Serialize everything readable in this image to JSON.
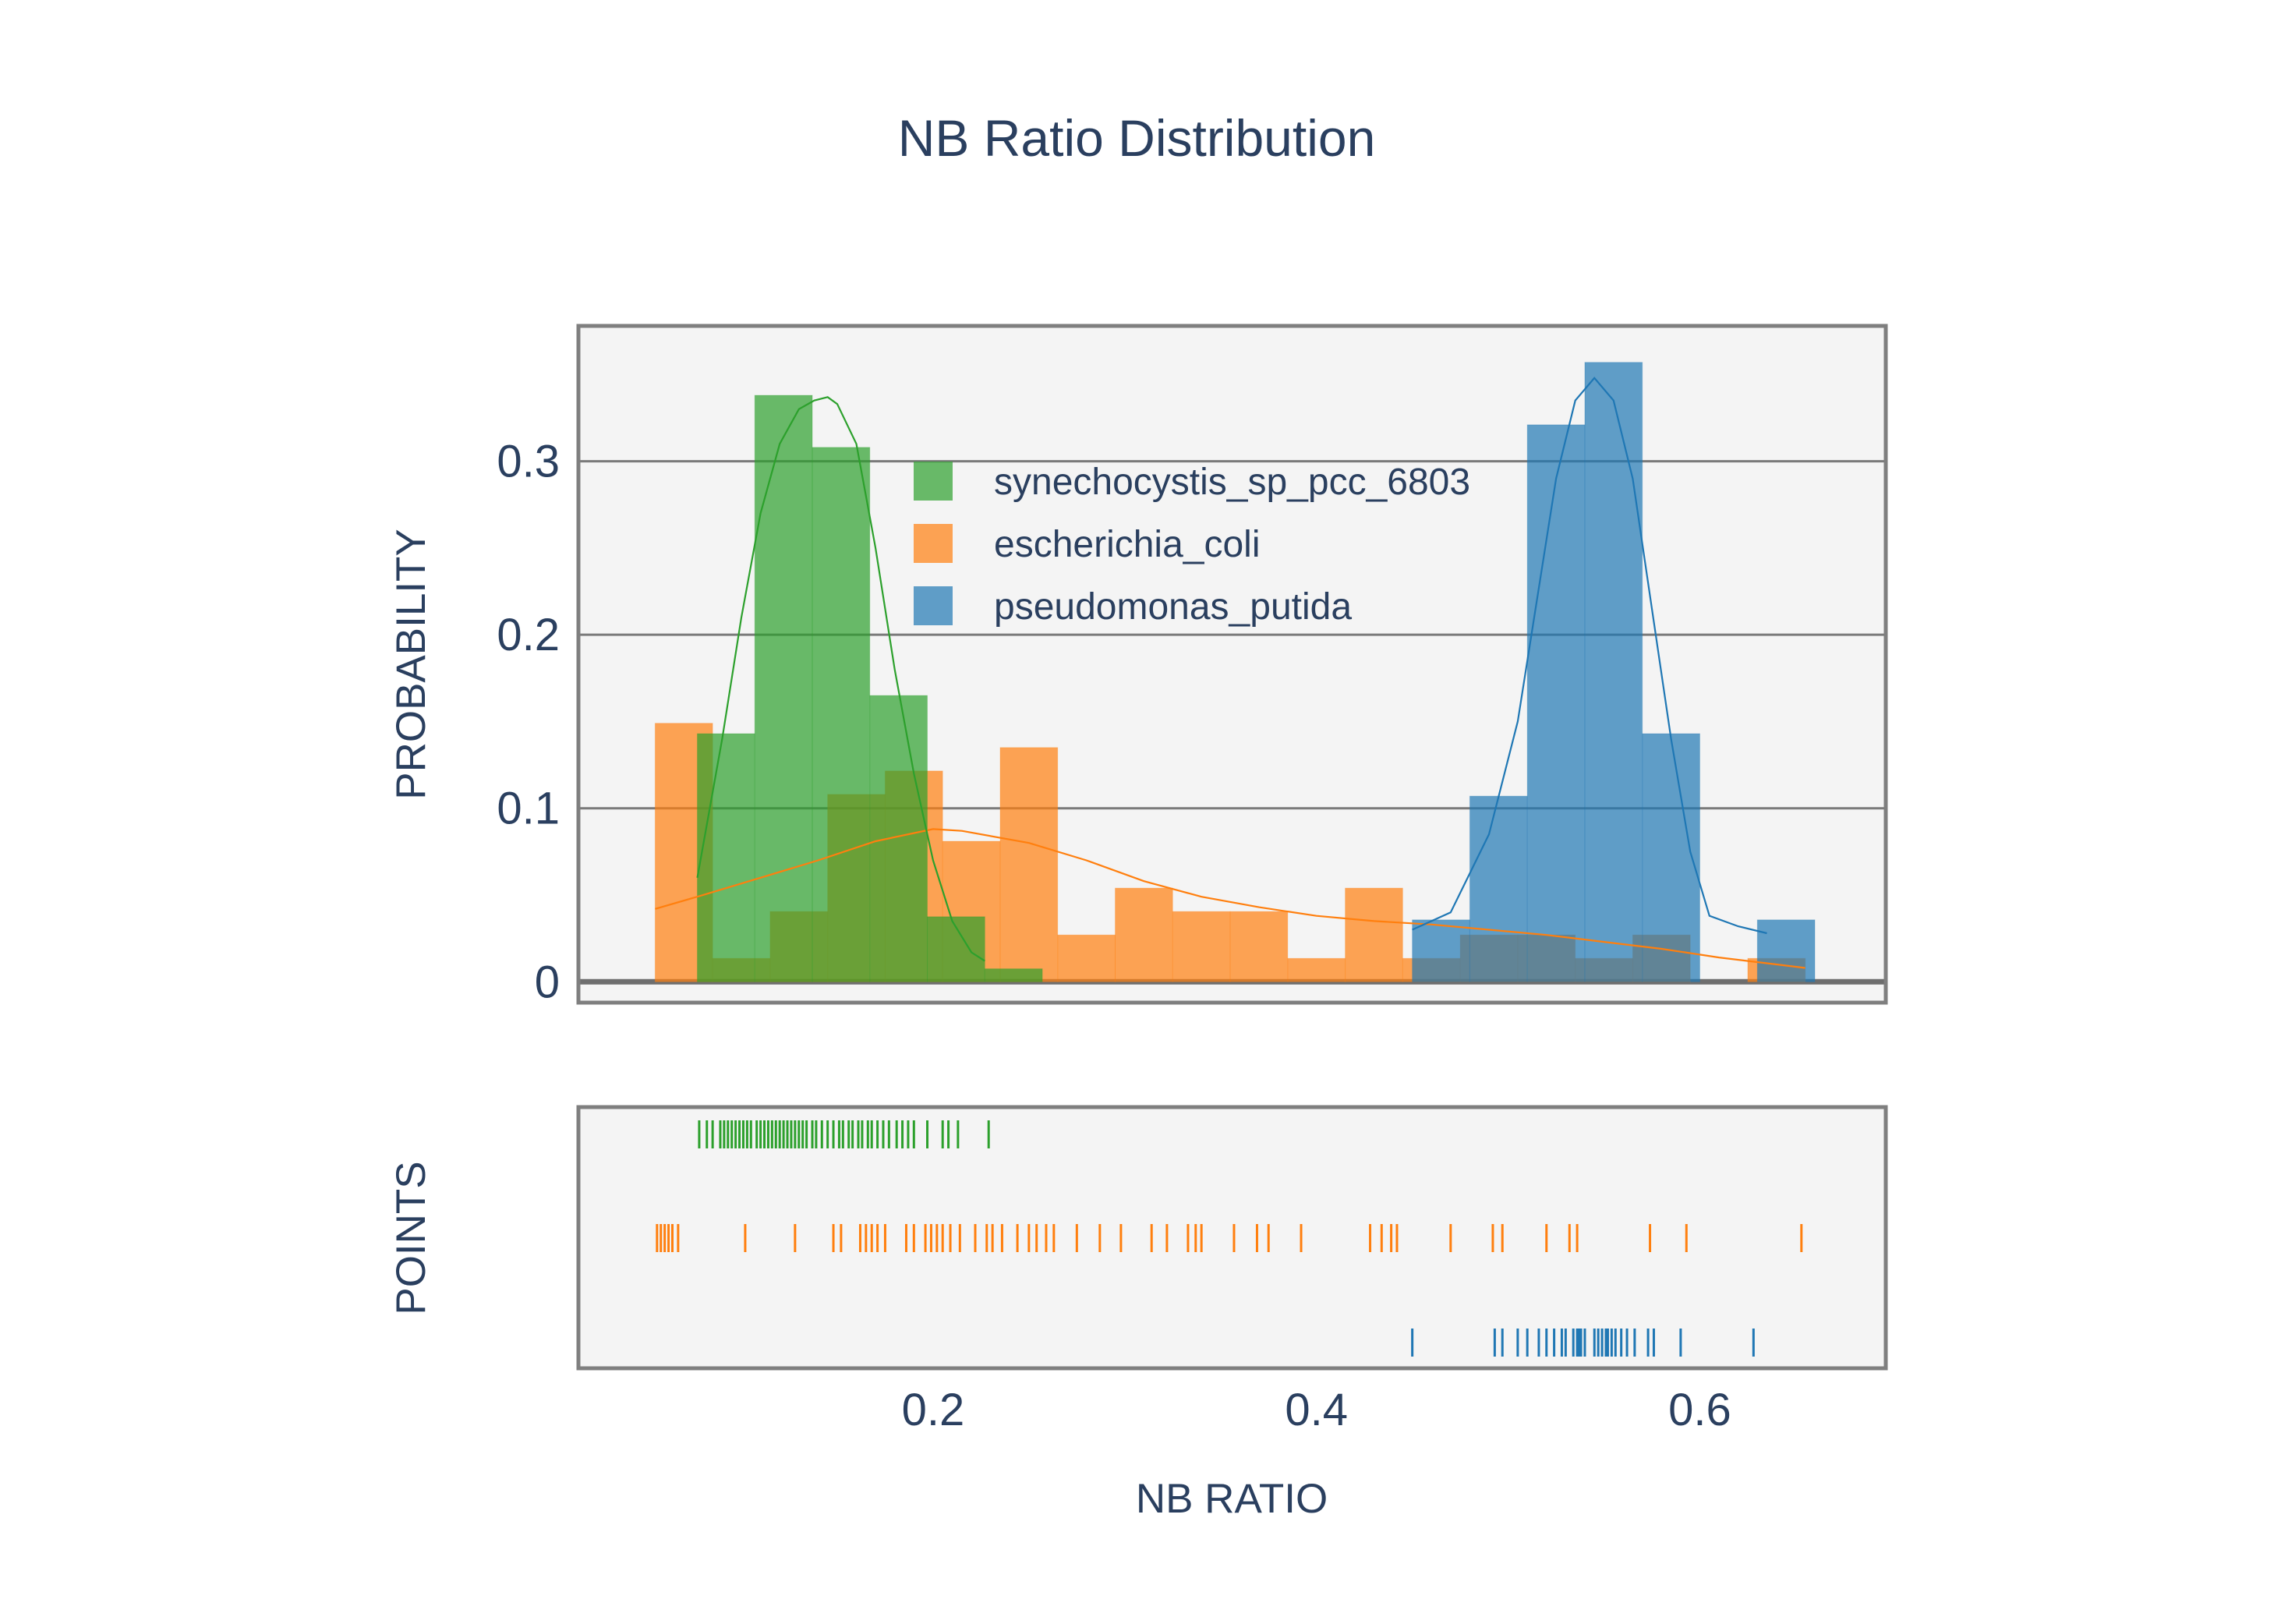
{
  "chart_data": {
    "type": "histogram",
    "title": "NB Ratio Distribution",
    "xlabel": "NB RATIO",
    "ylabel_top": "PROBABILITY",
    "ylabel_bottom": "POINTS",
    "xlim": [
      0.015,
      0.697
    ],
    "ylim": [
      -0.012,
      0.378
    ],
    "x_ticks": [
      "0.2",
      "0.4",
      "0.6"
    ],
    "x_tick_values": [
      0.2,
      0.4,
      0.6
    ],
    "y_ticks": [
      "0",
      "0.1",
      "0.2",
      "0.3"
    ],
    "y_tick_values": [
      0,
      0.1,
      0.2,
      0.3
    ],
    "grid": true,
    "legend_position": "top-center",
    "legend": [
      {
        "name": "synechocystis_sp_pcc_6803",
        "color": "#2ca02c"
      },
      {
        "name": "escherichia_coli",
        "color": "#ff7f0e"
      },
      {
        "name": "pseudomonas_putida",
        "color": "#1f77b4"
      }
    ],
    "series": [
      {
        "name": "escherichia_coli",
        "color": "#ff7f0e",
        "bins": [
          {
            "x0": 0.055,
            "x1": 0.085,
            "y": 0.149
          },
          {
            "x0": 0.085,
            "x1": 0.115,
            "y": 0.0135
          },
          {
            "x0": 0.115,
            "x1": 0.145,
            "y": 0.0405
          },
          {
            "x0": 0.145,
            "x1": 0.175,
            "y": 0.108
          },
          {
            "x0": 0.175,
            "x1": 0.205,
            "y": 0.1215
          },
          {
            "x0": 0.205,
            "x1": 0.235,
            "y": 0.081
          },
          {
            "x0": 0.235,
            "x1": 0.265,
            "y": 0.135
          },
          {
            "x0": 0.265,
            "x1": 0.295,
            "y": 0.027
          },
          {
            "x0": 0.295,
            "x1": 0.325,
            "y": 0.054
          },
          {
            "x0": 0.325,
            "x1": 0.355,
            "y": 0.0405
          },
          {
            "x0": 0.355,
            "x1": 0.385,
            "y": 0.0405
          },
          {
            "x0": 0.385,
            "x1": 0.415,
            "y": 0.0135
          },
          {
            "x0": 0.415,
            "x1": 0.445,
            "y": 0.054
          },
          {
            "x0": 0.445,
            "x1": 0.475,
            "y": 0.0135
          },
          {
            "x0": 0.475,
            "x1": 0.505,
            "y": 0.027
          },
          {
            "x0": 0.505,
            "x1": 0.535,
            "y": 0.027
          },
          {
            "x0": 0.535,
            "x1": 0.565,
            "y": 0.0135
          },
          {
            "x0": 0.565,
            "x1": 0.595,
            "y": 0.027
          },
          {
            "x0": 0.625,
            "x1": 0.655,
            "y": 0.0135
          }
        ],
        "kde": [
          [
            0.055,
            0.042
          ],
          [
            0.08,
            0.05
          ],
          [
            0.11,
            0.06
          ],
          [
            0.14,
            0.07
          ],
          [
            0.17,
            0.081
          ],
          [
            0.2,
            0.088
          ],
          [
            0.215,
            0.087
          ],
          [
            0.25,
            0.08
          ],
          [
            0.28,
            0.07
          ],
          [
            0.31,
            0.058
          ],
          [
            0.34,
            0.049
          ],
          [
            0.37,
            0.043
          ],
          [
            0.4,
            0.038
          ],
          [
            0.43,
            0.035
          ],
          [
            0.46,
            0.033
          ],
          [
            0.49,
            0.03
          ],
          [
            0.52,
            0.027
          ],
          [
            0.55,
            0.023
          ],
          [
            0.58,
            0.019
          ],
          [
            0.61,
            0.014
          ],
          [
            0.64,
            0.01
          ],
          [
            0.655,
            0.008
          ]
        ],
        "rug": [
          0.056,
          0.058,
          0.06,
          0.062,
          0.064,
          0.067,
          0.102,
          0.128,
          0.148,
          0.152,
          0.162,
          0.165,
          0.168,
          0.171,
          0.175,
          0.186,
          0.19,
          0.196,
          0.199,
          0.202,
          0.205,
          0.209,
          0.214,
          0.222,
          0.228,
          0.231,
          0.236,
          0.244,
          0.25,
          0.254,
          0.259,
          0.263,
          0.275,
          0.287,
          0.298,
          0.314,
          0.322,
          0.333,
          0.337,
          0.34,
          0.357,
          0.369,
          0.375,
          0.392,
          0.428,
          0.434,
          0.439,
          0.442,
          0.47,
          0.492,
          0.497,
          0.52,
          0.532,
          0.536,
          0.574,
          0.593,
          0.653
        ]
      },
      {
        "name": "synechocystis_sp_pcc_6803",
        "color": "#2ca02c",
        "bins": [
          {
            "x0": 0.077,
            "x1": 0.107,
            "y": 0.143
          },
          {
            "x0": 0.107,
            "x1": 0.137,
            "y": 0.338
          },
          {
            "x0": 0.137,
            "x1": 0.167,
            "y": 0.308
          },
          {
            "x0": 0.167,
            "x1": 0.197,
            "y": 0.165
          },
          {
            "x0": 0.197,
            "x1": 0.227,
            "y": 0.0375
          },
          {
            "x0": 0.227,
            "x1": 0.257,
            "y": 0.0075
          }
        ],
        "kde": [
          [
            0.077,
            0.06
          ],
          [
            0.09,
            0.14
          ],
          [
            0.1,
            0.21
          ],
          [
            0.11,
            0.27
          ],
          [
            0.12,
            0.31
          ],
          [
            0.13,
            0.33
          ],
          [
            0.138,
            0.335
          ],
          [
            0.145,
            0.337
          ],
          [
            0.15,
            0.333
          ],
          [
            0.16,
            0.31
          ],
          [
            0.17,
            0.25
          ],
          [
            0.18,
            0.18
          ],
          [
            0.19,
            0.12
          ],
          [
            0.2,
            0.07
          ],
          [
            0.21,
            0.035
          ],
          [
            0.22,
            0.017
          ],
          [
            0.227,
            0.012
          ]
        ],
        "rug": [
          0.078,
          0.082,
          0.085,
          0.089,
          0.091,
          0.093,
          0.095,
          0.097,
          0.099,
          0.101,
          0.103,
          0.105,
          0.108,
          0.11,
          0.112,
          0.114,
          0.116,
          0.118,
          0.12,
          0.122,
          0.124,
          0.126,
          0.128,
          0.13,
          0.132,
          0.134,
          0.137,
          0.139,
          0.142,
          0.145,
          0.148,
          0.151,
          0.153,
          0.156,
          0.158,
          0.161,
          0.163,
          0.166,
          0.168,
          0.171,
          0.174,
          0.177,
          0.181,
          0.184,
          0.187,
          0.19,
          0.197,
          0.205,
          0.208,
          0.213,
          0.229
        ]
      },
      {
        "name": "pseudomonas_putida",
        "color": "#1f77b4",
        "bins": [
          {
            "x0": 0.45,
            "x1": 0.48,
            "y": 0.0357
          },
          {
            "x0": 0.48,
            "x1": 0.51,
            "y": 0.107
          },
          {
            "x0": 0.51,
            "x1": 0.54,
            "y": 0.321
          },
          {
            "x0": 0.54,
            "x1": 0.57,
            "y": 0.357
          },
          {
            "x0": 0.57,
            "x1": 0.6,
            "y": 0.143
          },
          {
            "x0": 0.63,
            "x1": 0.66,
            "y": 0.0357
          }
        ],
        "kde": [
          [
            0.45,
            0.03
          ],
          [
            0.47,
            0.04
          ],
          [
            0.49,
            0.085
          ],
          [
            0.505,
            0.15
          ],
          [
            0.515,
            0.22
          ],
          [
            0.525,
            0.29
          ],
          [
            0.535,
            0.335
          ],
          [
            0.545,
            0.348
          ],
          [
            0.555,
            0.335
          ],
          [
            0.565,
            0.29
          ],
          [
            0.575,
            0.215
          ],
          [
            0.585,
            0.14
          ],
          [
            0.595,
            0.075
          ],
          [
            0.605,
            0.038
          ],
          [
            0.62,
            0.032
          ],
          [
            0.635,
            0.028
          ]
        ],
        "rug": [
          0.45,
          0.493,
          0.497,
          0.505,
          0.51,
          0.516,
          0.52,
          0.524,
          0.528,
          0.53,
          0.534,
          0.536,
          0.537,
          0.538,
          0.54,
          0.545,
          0.547,
          0.549,
          0.551,
          0.552,
          0.554,
          0.556,
          0.559,
          0.562,
          0.566,
          0.573,
          0.576,
          0.59,
          0.628
        ]
      }
    ]
  }
}
